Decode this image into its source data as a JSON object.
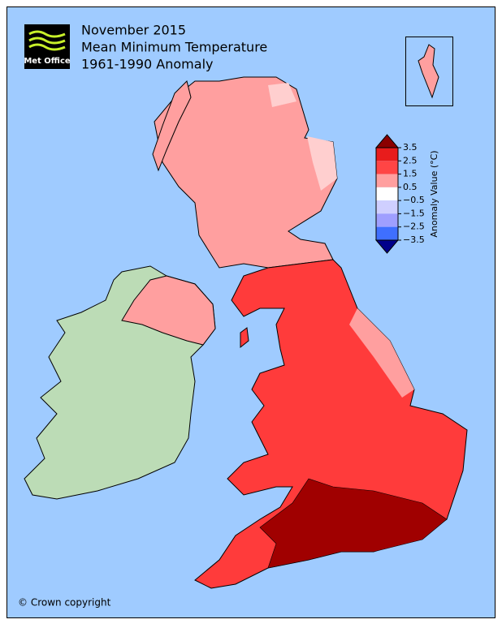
{
  "header": {
    "logo": "Met Office",
    "title_lines": [
      "November 2015",
      "Mean Minimum Temperature",
      "1961-1990 Anomaly"
    ]
  },
  "colorbar": {
    "label": "Anomaly Value (°C)",
    "ticks": [
      3.5,
      2.5,
      1.5,
      0.5,
      {
        "value": -0.5,
        "label": "−0.5"
      },
      {
        "value": -1.5,
        "label": "−1.5"
      },
      {
        "value": -2.5,
        "label": "−2.5"
      },
      {
        "value": -3.5,
        "label": "−3.5"
      }
    ],
    "colors": [
      "#e81c1c",
      "#ff4545",
      "#ff9f9f",
      "#ffffff",
      "#cfcfff",
      "#9f9fff",
      "#3f6fff"
    ],
    "over_color": "#8b0000",
    "under_color": "#00008b"
  },
  "footer": {
    "copyright": "© Crown copyright"
  }
}
